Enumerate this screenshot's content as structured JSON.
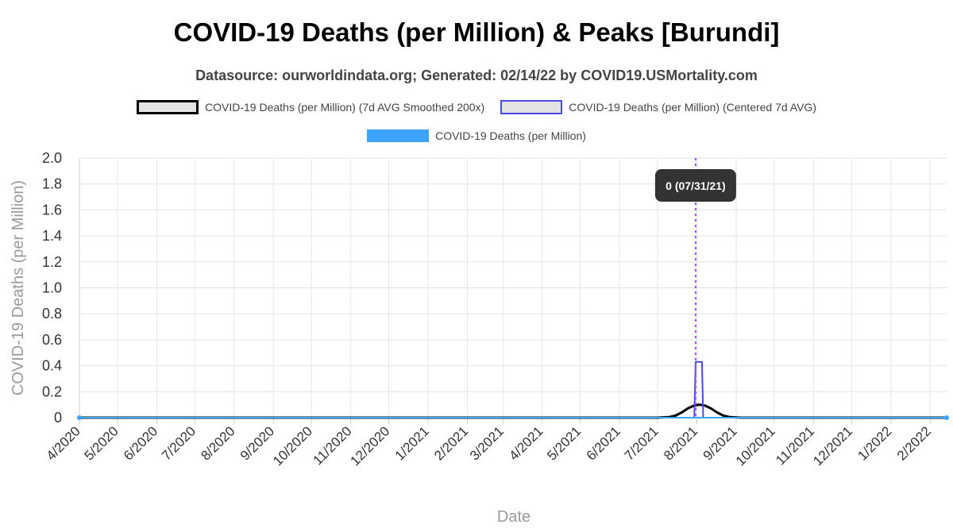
{
  "chart_data": {
    "type": "line",
    "title": "COVID-19 Deaths (per Million) & Peaks [Burundi]",
    "subtitle": "Datasource: ourworldindata.org; Generated: 02/14/22 by COVID19.USMortality.com",
    "xlabel": "Date",
    "ylabel": "COVID-19 Deaths (per Million)",
    "ylim": [
      0,
      2.0
    ],
    "y_ticks": [
      "0",
      "0.2",
      "0.4",
      "0.6",
      "0.8",
      "1.0",
      "1.2",
      "1.4",
      "1.6",
      "1.8",
      "2.0"
    ],
    "x_ticks": [
      "4/2020",
      "5/2020",
      "6/2020",
      "7/2020",
      "8/2020",
      "9/2020",
      "10/2020",
      "11/2020",
      "12/2020",
      "1/2021",
      "2/2021",
      "3/2021",
      "4/2021",
      "5/2021",
      "6/2021",
      "7/2021",
      "8/2021",
      "9/2021",
      "10/2021",
      "11/2021",
      "12/2021",
      "1/2022",
      "2/2022"
    ],
    "x_range": [
      "2020-04-01",
      "2022-02-14"
    ],
    "grid": true,
    "legend_position": "top-center",
    "series": [
      {
        "name": "COVID-19 Deaths (per Million) (7d AVG Smoothed 200x)",
        "color": "#000000",
        "fill": "#e4e4e4",
        "points": [
          {
            "x": "2020-04-01",
            "y": 0
          },
          {
            "x": "2021-07-01",
            "y": 0
          },
          {
            "x": "2021-07-10",
            "y": 0.004
          },
          {
            "x": "2021-07-15",
            "y": 0.015
          },
          {
            "x": "2021-07-20",
            "y": 0.04
          },
          {
            "x": "2021-07-25",
            "y": 0.072
          },
          {
            "x": "2021-07-30",
            "y": 0.094
          },
          {
            "x": "2021-08-03",
            "y": 0.1
          },
          {
            "x": "2021-08-07",
            "y": 0.094
          },
          {
            "x": "2021-08-12",
            "y": 0.072
          },
          {
            "x": "2021-08-17",
            "y": 0.04
          },
          {
            "x": "2021-08-22",
            "y": 0.015
          },
          {
            "x": "2021-08-27",
            "y": 0.004
          },
          {
            "x": "2021-09-05",
            "y": 0
          },
          {
            "x": "2022-02-14",
            "y": 0
          }
        ]
      },
      {
        "name": "COVID-19 Deaths (per Million) (Centered 7d AVG)",
        "color": "#4a4ae8",
        "fill": "#e4e4e4",
        "points": [
          {
            "x": "2020-04-01",
            "y": 0
          },
          {
            "x": "2021-07-30",
            "y": 0
          },
          {
            "x": "2021-07-31",
            "y": 0.43
          },
          {
            "x": "2021-08-05",
            "y": 0.43
          },
          {
            "x": "2021-08-06",
            "y": 0
          },
          {
            "x": "2022-02-14",
            "y": 0
          }
        ]
      },
      {
        "name": "COVID-19 Deaths (per Million)",
        "color": "#3ea2ff",
        "fill": "#3ea2ff",
        "points": [
          {
            "x": "2020-04-01",
            "y": 0
          },
          {
            "x": "2022-02-14",
            "y": 0
          }
        ]
      }
    ],
    "peak": {
      "x": "2021-07-31",
      "label": "0 (07/31/21)",
      "line_color": "#a14bf5"
    }
  }
}
